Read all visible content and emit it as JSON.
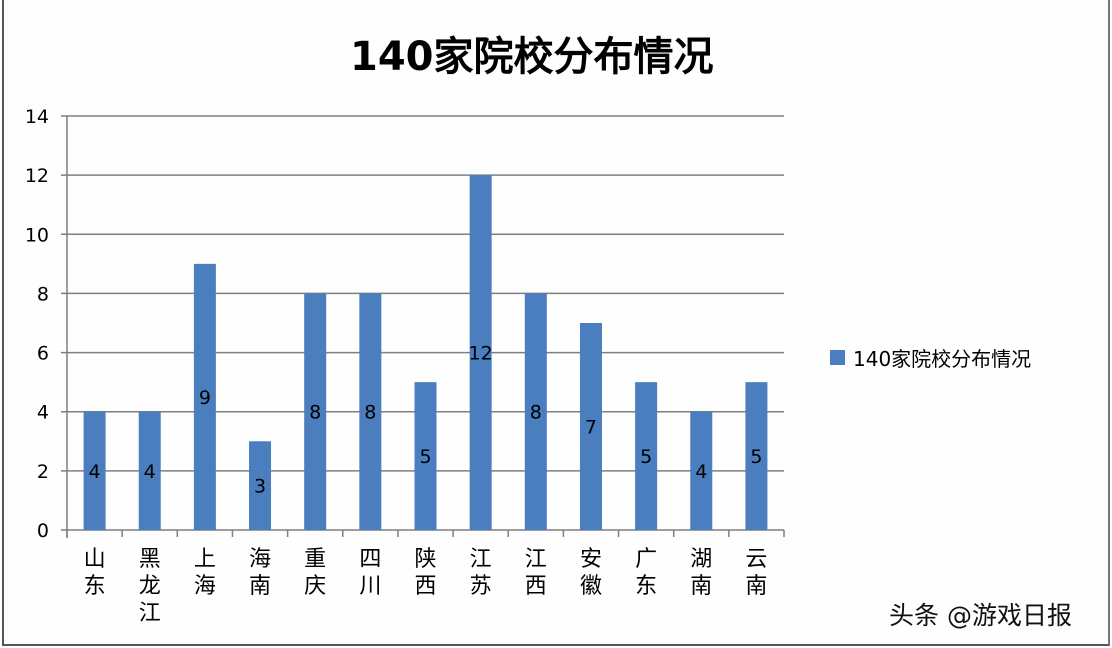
{
  "chart_data": {
    "type": "bar",
    "title": "140家院校分布情况",
    "xlabel": "",
    "ylabel": "",
    "ylim": [
      0,
      14
    ],
    "yticks": [
      0,
      2,
      4,
      6,
      8,
      10,
      12,
      14
    ],
    "grid": true,
    "legend_position": "right",
    "categories": [
      "山东",
      "黑龙江",
      "上海",
      "海南",
      "重庆",
      "四川",
      "陕西",
      "江苏",
      "江西",
      "安徽",
      "广东",
      "湖南",
      "云南"
    ],
    "series": [
      {
        "name": "140家院校分布情况",
        "color": "#4a7ebf",
        "values": [
          4,
          4,
          9,
          3,
          8,
          8,
          5,
          12,
          8,
          7,
          5,
          4,
          5
        ]
      }
    ],
    "data_labels": true
  },
  "legend": {
    "label": "140家院校分布情况",
    "color": "#4a7ebf"
  },
  "watermark": "头条 @游戏日报",
  "colors": {
    "bar": "#4a7ebf",
    "grid": "#7f7f7f",
    "axis": "#7f7f7f",
    "text": "#000000"
  }
}
